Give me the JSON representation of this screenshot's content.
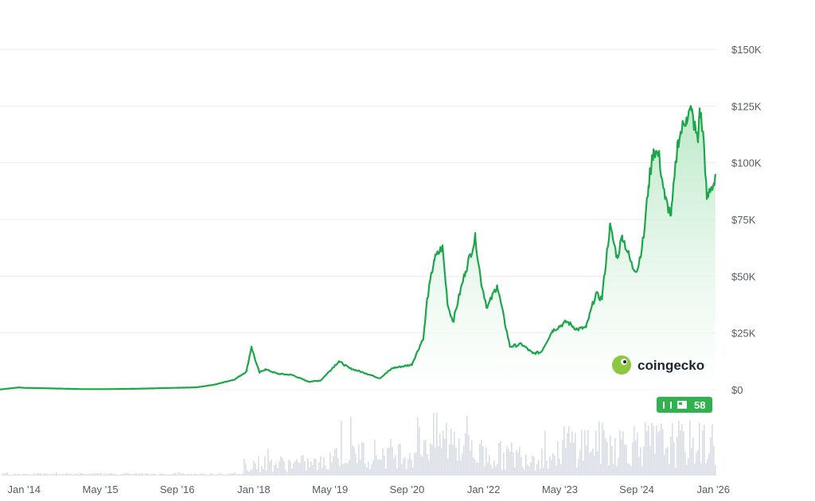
{
  "colors": {
    "line": "#1ca64a",
    "area_top": "#b9e8c6",
    "area_bottom": "#ffffff",
    "grid": "#e9ecef",
    "volume": "#d9dde4",
    "badge": "#32b24f",
    "tick_text": "#555c66"
  },
  "watermark": {
    "label": "coingecko",
    "icon": "gecko-logo-icon"
  },
  "badge": {
    "label": "58",
    "icons": [
      "bar-icon",
      "bar-icon",
      "newspaper-icon"
    ]
  },
  "chart_data": {
    "type": "area",
    "y_axis": {
      "side": "right",
      "ylim": [
        0,
        150000
      ],
      "ticks": [
        0,
        25000,
        50000,
        75000,
        100000,
        125000,
        150000
      ],
      "tick_labels": [
        "$0",
        "$25K",
        "$50K",
        "$75K",
        "$100K",
        "$125K",
        "$150K"
      ]
    },
    "x_axis": {
      "xlim": [
        "2013-08-01",
        "2026-01-20"
      ],
      "ticks": [
        "2014-01-01",
        "2015-05-01",
        "2016-09-01",
        "2018-01-01",
        "2019-05-01",
        "2020-09-01",
        "2022-01-01",
        "2023-05-01",
        "2024-09-01",
        "2026-01-01"
      ],
      "tick_labels": [
        "Jan '14",
        "May '15",
        "Sep '16",
        "Jan '18",
        "May '19",
        "Sep '20",
        "Jan '22",
        "May '23",
        "Sep '24",
        "Jan '26"
      ]
    },
    "grid": true,
    "series": [
      {
        "x": [
          "2013-08-01",
          "2013-12-01",
          "2014-01-01",
          "2014-06-01",
          "2015-01-01",
          "2015-06-01",
          "2016-01-01",
          "2016-06-01",
          "2017-01-01",
          "2017-05-01",
          "2017-09-01",
          "2017-11-15",
          "2017-12-17",
          "2018-01-15",
          "2018-02-06",
          "2018-03-15",
          "2018-06-01",
          "2018-09-01",
          "2018-12-15",
          "2019-03-01",
          "2019-06-26",
          "2019-09-01",
          "2019-12-15",
          "2020-03-12",
          "2020-06-01",
          "2020-10-01",
          "2020-12-15",
          "2021-01-08",
          "2021-02-20",
          "2021-04-14",
          "2021-05-19",
          "2021-06-22",
          "2021-08-01",
          "2021-09-07",
          "2021-11-10",
          "2021-12-15",
          "2022-01-24",
          "2022-03-28",
          "2022-05-15",
          "2022-06-18",
          "2022-09-01",
          "2022-11-09",
          "2023-01-01",
          "2023-03-15",
          "2023-06-15",
          "2023-08-20",
          "2023-10-15",
          "2023-12-15",
          "2024-01-23",
          "2024-03-14",
          "2024-05-01",
          "2024-06-01",
          "2024-08-05",
          "2024-09-06",
          "2024-10-15",
          "2024-11-15",
          "2024-12-17",
          "2025-01-20",
          "2025-02-28",
          "2025-04-08",
          "2025-05-22",
          "2025-07-14",
          "2025-08-14",
          "2025-09-25",
          "2025-10-06",
          "2025-11-01",
          "2025-11-21",
          "2025-12-15",
          "2026-01-05",
          "2026-01-14"
        ],
        "values": [
          100,
          1000,
          800,
          600,
          250,
          240,
          430,
          700,
          1000,
          2300,
          4500,
          8000,
          19000,
          12000,
          7500,
          9000,
          7000,
          6500,
          3500,
          4000,
          12500,
          9500,
          7200,
          5000,
          9500,
          11000,
          23000,
          40000,
          57000,
          63000,
          37000,
          30000,
          42000,
          52000,
          67000,
          48000,
          36000,
          46000,
          30000,
          19000,
          20000,
          16000,
          16500,
          26000,
          30000,
          26500,
          27500,
          42000,
          40000,
          72000,
          58000,
          68000,
          54000,
          53000,
          67000,
          90000,
          106000,
          103000,
          84000,
          77000,
          110000,
          120000,
          123000,
          109000,
          124000,
          110000,
          84000,
          88000,
          91000,
          95000
        ]
      }
    ]
  }
}
